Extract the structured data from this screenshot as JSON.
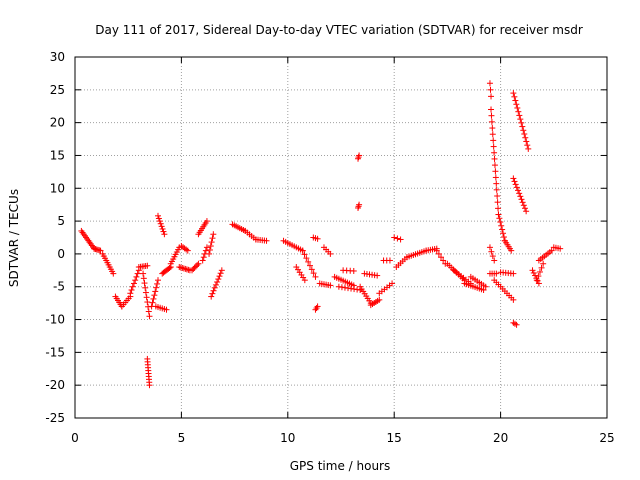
{
  "colors": {
    "series": "#ff0000",
    "axis": "#000000",
    "grid": "#a0a0a0"
  },
  "chart_data": {
    "type": "scatter",
    "title": "Day 111 of 2017, Sidereal Day-to-day VTEC variation (SDTVAR) for receiver msdr",
    "xlabel": "GPS time / hours",
    "ylabel": "SDTVAR / TECUs",
    "xlim": [
      0,
      25
    ],
    "ylim": [
      -25,
      30
    ],
    "xticks": [
      "0",
      "5",
      "10",
      "15",
      "20",
      "25"
    ],
    "yticks": [
      "-25",
      "-20",
      "-15",
      "-10",
      "-5",
      "0",
      "5",
      "10",
      "15",
      "20",
      "25",
      "30"
    ],
    "grid": true,
    "marker": "+",
    "segments": [
      {
        "x0": 0.3,
        "x1": 0.9,
        "y0": 3.5,
        "y1": 0.8,
        "n": 12
      },
      {
        "x0": 0.9,
        "x1": 1.2,
        "y0": 0.8,
        "y1": 0.5,
        "n": 6
      },
      {
        "x0": 1.3,
        "x1": 1.8,
        "y0": 0.0,
        "y1": -3.0,
        "n": 10
      },
      {
        "x0": 1.9,
        "x1": 2.2,
        "y0": -6.5,
        "y1": -8.0,
        "n": 6
      },
      {
        "x0": 2.2,
        "x1": 2.6,
        "y0": -8.0,
        "y1": -6.5,
        "n": 6
      },
      {
        "x0": 2.6,
        "x1": 3.0,
        "y0": -6.0,
        "y1": -2.5,
        "n": 8
      },
      {
        "x0": 3.0,
        "x1": 3.4,
        "y0": -2.0,
        "y1": -1.8,
        "n": 6
      },
      {
        "x0": 3.2,
        "x1": 3.5,
        "y0": -3.0,
        "y1": -9.5,
        "n": 10
      },
      {
        "x0": 3.4,
        "x1": 3.5,
        "y0": -16.0,
        "y1": -20.0,
        "n": 10
      },
      {
        "x0": 3.6,
        "x1": 3.9,
        "y0": -8.0,
        "y1": -4.0,
        "n": 8
      },
      {
        "x0": 3.8,
        "x1": 4.3,
        "y0": -8.0,
        "y1": -8.5,
        "n": 6
      },
      {
        "x0": 3.9,
        "x1": 4.2,
        "y0": 5.8,
        "y1": 3.0,
        "n": 8
      },
      {
        "x0": 4.1,
        "x1": 4.5,
        "y0": -3.0,
        "y1": -2.0,
        "n": 8
      },
      {
        "x0": 4.5,
        "x1": 4.9,
        "y0": -1.5,
        "y1": 1.0,
        "n": 8
      },
      {
        "x0": 4.9,
        "x1": 5.4,
        "y0": -2.0,
        "y1": -2.5,
        "n": 8
      },
      {
        "x0": 5.0,
        "x1": 5.3,
        "y0": 1.2,
        "y1": 0.5,
        "n": 5
      },
      {
        "x0": 5.5,
        "x1": 5.8,
        "y0": -2.5,
        "y1": -1.5,
        "n": 6
      },
      {
        "x0": 5.8,
        "x1": 6.2,
        "y0": 3.0,
        "y1": 5.0,
        "n": 8
      },
      {
        "x0": 6.0,
        "x1": 6.2,
        "y0": -1.0,
        "y1": 1.0,
        "n": 5
      },
      {
        "x0": 6.3,
        "x1": 6.5,
        "y0": 0.0,
        "y1": 3.0,
        "n": 6
      },
      {
        "x0": 6.4,
        "x1": 6.9,
        "y0": -6.5,
        "y1": -2.5,
        "n": 10
      },
      {
        "x0": 7.4,
        "x1": 8.0,
        "y0": 4.5,
        "y1": 3.5,
        "n": 8
      },
      {
        "x0": 8.0,
        "x1": 8.5,
        "y0": 3.5,
        "y1": 2.2,
        "n": 6
      },
      {
        "x0": 8.5,
        "x1": 9.0,
        "y0": 2.2,
        "y1": 2.0,
        "n": 6
      },
      {
        "x0": 9.8,
        "x1": 10.7,
        "y0": 2.0,
        "y1": 0.5,
        "n": 10
      },
      {
        "x0": 10.7,
        "x1": 11.3,
        "y0": 0.5,
        "y1": -3.5,
        "n": 8
      },
      {
        "x0": 10.4,
        "x1": 10.8,
        "y0": -2.0,
        "y1": -4.0,
        "n": 6
      },
      {
        "x0": 11.2,
        "x1": 11.4,
        "y0": 2.5,
        "y1": 2.3,
        "n": 3
      },
      {
        "x0": 11.3,
        "x1": 11.4,
        "y0": -8.5,
        "y1": -8.0,
        "n": 3
      },
      {
        "x0": 11.5,
        "x1": 12.0,
        "y0": -4.5,
        "y1": -4.8,
        "n": 6
      },
      {
        "x0": 11.7,
        "x1": 12.0,
        "y0": 1.0,
        "y1": 0.0,
        "n": 4
      },
      {
        "x0": 12.2,
        "x1": 13.1,
        "y0": -3.5,
        "y1": -4.8,
        "n": 10
      },
      {
        "x0": 12.4,
        "x1": 13.4,
        "y0": -5.0,
        "y1": -5.5,
        "n": 8
      },
      {
        "x0": 12.6,
        "x1": 13.1,
        "y0": -2.5,
        "y1": -2.6,
        "n": 4
      },
      {
        "x0": 13.3,
        "x1": 13.35,
        "y0": 14.5,
        "y1": 15.0,
        "n": 3
      },
      {
        "x0": 13.3,
        "x1": 13.35,
        "y0": 7.0,
        "y1": 7.5,
        "n": 3
      },
      {
        "x0": 13.4,
        "x1": 13.9,
        "y0": -5.0,
        "y1": -7.5,
        "n": 8
      },
      {
        "x0": 13.9,
        "x1": 14.3,
        "y0": -7.8,
        "y1": -7.0,
        "n": 6
      },
      {
        "x0": 13.6,
        "x1": 14.2,
        "y0": -3.0,
        "y1": -3.3,
        "n": 6
      },
      {
        "x0": 14.3,
        "x1": 14.9,
        "y0": -6.0,
        "y1": -4.5,
        "n": 6
      },
      {
        "x0": 14.5,
        "x1": 14.8,
        "y0": -1.0,
        "y1": -1.0,
        "n": 3
      },
      {
        "x0": 15.0,
        "x1": 15.3,
        "y0": 2.5,
        "y1": 2.2,
        "n": 3
      },
      {
        "x0": 15.1,
        "x1": 15.6,
        "y0": -2.0,
        "y1": -0.5,
        "n": 6
      },
      {
        "x0": 15.6,
        "x1": 16.5,
        "y0": -0.5,
        "y1": 0.5,
        "n": 10
      },
      {
        "x0": 16.5,
        "x1": 17.0,
        "y0": 0.5,
        "y1": 0.8,
        "n": 6
      },
      {
        "x0": 17.0,
        "x1": 17.4,
        "y0": 0.5,
        "y1": -1.5,
        "n": 5
      },
      {
        "x0": 17.5,
        "x1": 18.3,
        "y0": -1.5,
        "y1": -4.0,
        "n": 10
      },
      {
        "x0": 17.8,
        "x1": 18.6,
        "y0": -2.5,
        "y1": -4.5,
        "n": 8
      },
      {
        "x0": 18.3,
        "x1": 19.2,
        "y0": -4.5,
        "y1": -5.5,
        "n": 10
      },
      {
        "x0": 18.6,
        "x1": 19.3,
        "y0": -3.5,
        "y1": -5.0,
        "n": 8
      },
      {
        "x0": 19.5,
        "x1": 19.55,
        "y0": 26.0,
        "y1": 24.0,
        "n": 3
      },
      {
        "x0": 19.55,
        "x1": 19.9,
        "y0": 22.0,
        "y1": 6.0,
        "n": 18
      },
      {
        "x0": 19.9,
        "x1": 20.2,
        "y0": 6.0,
        "y1": 2.0,
        "n": 8
      },
      {
        "x0": 20.2,
        "x1": 20.5,
        "y0": 2.0,
        "y1": 0.5,
        "n": 6
      },
      {
        "x0": 19.5,
        "x1": 19.7,
        "y0": 1.0,
        "y1": -1.0,
        "n": 4
      },
      {
        "x0": 19.5,
        "x1": 19.8,
        "y0": -3.0,
        "y1": -3.0,
        "n": 4
      },
      {
        "x0": 19.7,
        "x1": 20.6,
        "y0": -4.0,
        "y1": -7.0,
        "n": 10
      },
      {
        "x0": 20.0,
        "x1": 20.6,
        "y0": -2.8,
        "y1": -3.0,
        "n": 6
      },
      {
        "x0": 20.6,
        "x1": 20.75,
        "y0": -10.5,
        "y1": -10.8,
        "n": 3
      },
      {
        "x0": 20.6,
        "x1": 21.3,
        "y0": 24.5,
        "y1": 16.0,
        "n": 16
      },
      {
        "x0": 20.6,
        "x1": 21.2,
        "y0": 11.5,
        "y1": 6.5,
        "n": 12
      },
      {
        "x0": 21.5,
        "x1": 21.8,
        "y0": -2.5,
        "y1": -4.5,
        "n": 6
      },
      {
        "x0": 21.7,
        "x1": 22.0,
        "y0": -4.0,
        "y1": -1.5,
        "n": 5
      },
      {
        "x0": 21.8,
        "x1": 22.4,
        "y0": -1.0,
        "y1": 0.5,
        "n": 8
      },
      {
        "x0": 22.5,
        "x1": 22.8,
        "y0": 1.0,
        "y1": 0.8,
        "n": 4
      }
    ]
  }
}
